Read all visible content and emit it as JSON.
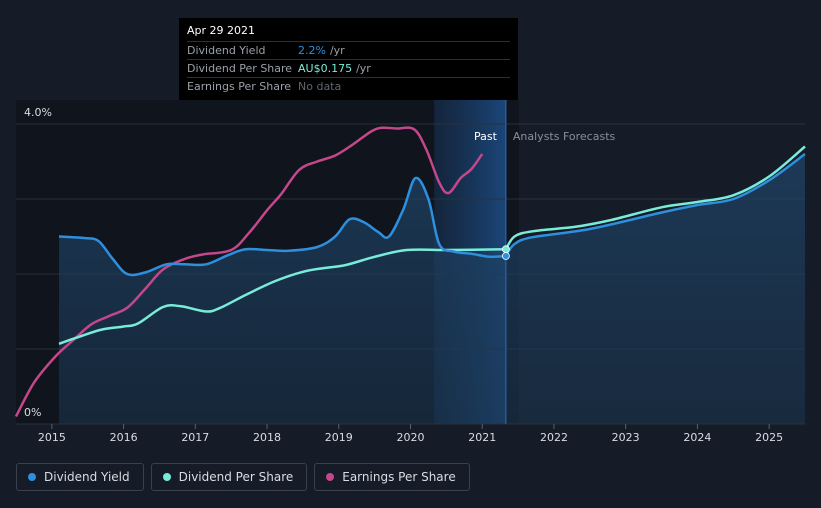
{
  "tooltip": {
    "date": "Apr 29 2021",
    "rows": [
      {
        "label": "Dividend Yield",
        "value": "2.2%",
        "unit": "/yr"
      },
      {
        "label": "Dividend Per Share",
        "value": "AU$0.175",
        "unit": "/yr"
      },
      {
        "label": "Earnings Per Share",
        "value": "No data"
      }
    ]
  },
  "legend": [
    {
      "label": "Dividend Yield",
      "color": "#2e8fdc"
    },
    {
      "label": "Dividend Per Share",
      "color": "#79ecd9"
    },
    {
      "label": "Earnings Per Share",
      "color": "#c4478c"
    }
  ],
  "chart_data": {
    "type": "line",
    "y_tick_labels": [
      "4.0%",
      "0%"
    ],
    "ylim": [
      0,
      4.0
    ],
    "xlim": [
      2014.5,
      2025.5
    ],
    "x_ticks": [
      2015,
      2016,
      2017,
      2018,
      2019,
      2020,
      2021,
      2022,
      2023,
      2024,
      2025
    ],
    "x_tick_labels": [
      "2015",
      "2016",
      "2017",
      "2018",
      "2019",
      "2020",
      "2021",
      "2022",
      "2023",
      "2024",
      "2025"
    ],
    "grid": true,
    "past_label": "Past",
    "forecast_label": "Analysts Forecasts",
    "divider_x": 2021.33,
    "series": [
      {
        "name": "Dividend Yield",
        "color": "#2e8fdc",
        "past": [
          [
            2015.1,
            2.5
          ],
          [
            2015.45,
            2.48
          ],
          [
            2015.65,
            2.44
          ],
          [
            2015.85,
            2.2
          ],
          [
            2016.05,
            2.0
          ],
          [
            2016.3,
            2.02
          ],
          [
            2016.6,
            2.13
          ],
          [
            2016.85,
            2.13
          ],
          [
            2017.15,
            2.13
          ],
          [
            2017.45,
            2.25
          ],
          [
            2017.7,
            2.33
          ],
          [
            2018.0,
            2.32
          ],
          [
            2018.3,
            2.31
          ],
          [
            2018.7,
            2.36
          ],
          [
            2018.95,
            2.5
          ],
          [
            2019.15,
            2.73
          ],
          [
            2019.35,
            2.69
          ],
          [
            2019.55,
            2.56
          ],
          [
            2019.7,
            2.5
          ],
          [
            2019.9,
            2.86
          ],
          [
            2020.07,
            3.28
          ],
          [
            2020.25,
            3.0
          ],
          [
            2020.4,
            2.4
          ],
          [
            2020.6,
            2.3
          ],
          [
            2020.85,
            2.27
          ],
          [
            2021.1,
            2.23
          ],
          [
            2021.33,
            2.24
          ]
        ],
        "forecast": [
          [
            2021.33,
            2.24
          ],
          [
            2021.45,
            2.4
          ],
          [
            2021.7,
            2.49
          ],
          [
            2022.5,
            2.6
          ],
          [
            2023.5,
            2.82
          ],
          [
            2024.0,
            2.92
          ],
          [
            2024.5,
            3.0
          ],
          [
            2025.0,
            3.25
          ],
          [
            2025.5,
            3.6
          ]
        ]
      },
      {
        "name": "Dividend Per Share",
        "color": "#79ecd9",
        "past": [
          [
            2015.1,
            1.07
          ],
          [
            2015.4,
            1.17
          ],
          [
            2015.7,
            1.26
          ],
          [
            2016.0,
            1.3
          ],
          [
            2016.2,
            1.34
          ],
          [
            2016.55,
            1.56
          ],
          [
            2016.8,
            1.57
          ],
          [
            2017.15,
            1.5
          ],
          [
            2017.35,
            1.55
          ],
          [
            2017.7,
            1.72
          ],
          [
            2018.1,
            1.9
          ],
          [
            2018.5,
            2.03
          ],
          [
            2018.8,
            2.08
          ],
          [
            2019.1,
            2.12
          ],
          [
            2019.5,
            2.23
          ],
          [
            2019.95,
            2.32
          ],
          [
            2020.5,
            2.32
          ],
          [
            2021.33,
            2.33
          ]
        ],
        "forecast": [
          [
            2021.33,
            2.33
          ],
          [
            2021.45,
            2.5
          ],
          [
            2021.7,
            2.57
          ],
          [
            2022.3,
            2.63
          ],
          [
            2022.8,
            2.72
          ],
          [
            2023.5,
            2.89
          ],
          [
            2024.0,
            2.96
          ],
          [
            2024.5,
            3.05
          ],
          [
            2025.0,
            3.3
          ],
          [
            2025.5,
            3.7
          ]
        ]
      },
      {
        "name": "Earnings Per Share",
        "color": "#c4478c",
        "past": [
          [
            2014.5,
            0.1
          ],
          [
            2014.75,
            0.55
          ],
          [
            2015.05,
            0.9
          ],
          [
            2015.3,
            1.12
          ],
          [
            2015.55,
            1.33
          ],
          [
            2015.8,
            1.44
          ],
          [
            2016.05,
            1.55
          ],
          [
            2016.3,
            1.8
          ],
          [
            2016.55,
            2.06
          ],
          [
            2016.85,
            2.2
          ],
          [
            2017.1,
            2.26
          ],
          [
            2017.5,
            2.32
          ],
          [
            2017.75,
            2.55
          ],
          [
            2018.0,
            2.85
          ],
          [
            2018.2,
            3.07
          ],
          [
            2018.45,
            3.39
          ],
          [
            2018.7,
            3.5
          ],
          [
            2018.95,
            3.58
          ],
          [
            2019.2,
            3.73
          ],
          [
            2019.45,
            3.9
          ],
          [
            2019.6,
            3.95
          ],
          [
            2019.8,
            3.94
          ],
          [
            2020.05,
            3.93
          ],
          [
            2020.22,
            3.66
          ],
          [
            2020.4,
            3.22
          ],
          [
            2020.53,
            3.08
          ],
          [
            2020.7,
            3.28
          ],
          [
            2020.85,
            3.4
          ],
          [
            2021.0,
            3.6
          ]
        ]
      }
    ]
  }
}
